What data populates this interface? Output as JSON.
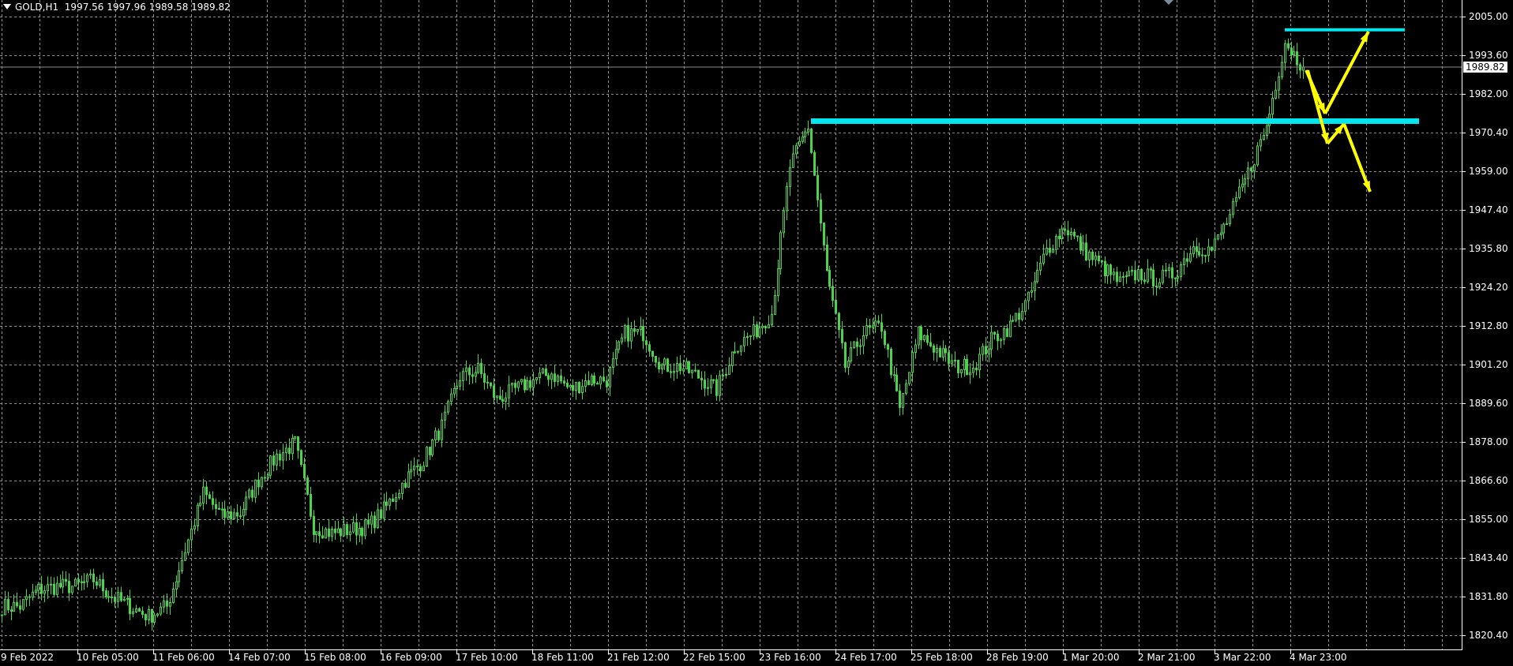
{
  "header": {
    "symbol": "GOLD,H1",
    "open": "1997.56",
    "high": "1997.96",
    "low": "1989.58",
    "close": "1989.82"
  },
  "colors": {
    "background": "#000000",
    "grid": "#8a8a8a",
    "candle": "#4cd34c",
    "level_line": "#00e5ee",
    "arrow": "#ffff00",
    "axis": "#ffffff"
  },
  "chart_data": {
    "type": "candlestick",
    "title": "GOLD,H1",
    "timeframe": "H1",
    "current_price": 1989.82,
    "ylim": [
      1814.6,
      2010.8
    ],
    "grid": true,
    "y_ticks": [
      "2005.00",
      "1993.60",
      "1982.00",
      "1970.40",
      "1959.00",
      "1947.40",
      "1935.80",
      "1924.20",
      "1912.80",
      "1901.20",
      "1889.60",
      "1878.00",
      "1866.60",
      "1855.00",
      "1843.40",
      "1831.80",
      "1820.40"
    ],
    "x_ticks": [
      "9 Feb 2022",
      "10 Feb 05:00",
      "11 Feb 06:00",
      "14 Feb 07:00",
      "15 Feb 08:00",
      "16 Feb 09:00",
      "17 Feb 10:00",
      "18 Feb 11:00",
      "21 Feb 12:00",
      "22 Feb 15:00",
      "23 Feb 16:00",
      "24 Feb 17:00",
      "25 Feb 18:00",
      "28 Feb 19:00",
      "1 Mar 20:00",
      "2 Mar 21:00",
      "3 Mar 22:00",
      "4 Mar 23:00"
    ],
    "approx_close_path_every_6_bars": [
      1828,
      1828,
      1833,
      1834,
      1834,
      1836,
      1831,
      1828,
      1825,
      1828,
      1845,
      1862,
      1855,
      1856,
      1866,
      1873,
      1877,
      1852,
      1850,
      1851,
      1852,
      1858,
      1866,
      1872,
      1882,
      1897,
      1899,
      1890,
      1893,
      1896,
      1898,
      1893,
      1896,
      1896,
      1910,
      1910,
      1900,
      1900,
      1897,
      1893,
      1906,
      1910,
      1916,
      1960,
      1972,
      1928,
      1900,
      1910,
      1912,
      1887,
      1910,
      1905,
      1900,
      1900,
      1908,
      1912,
      1920,
      1935,
      1942,
      1935,
      1930,
      1925,
      1928,
      1926,
      1928,
      1936,
      1935,
      1945,
      1958,
      1972,
      1997.56,
      1989.82
    ],
    "levels": [
      1973.6,
      2001.0
    ],
    "annotations": "yellow arrows: scenario up to 2001 after retest of 1973.6, or breakdown below 1973.6"
  }
}
